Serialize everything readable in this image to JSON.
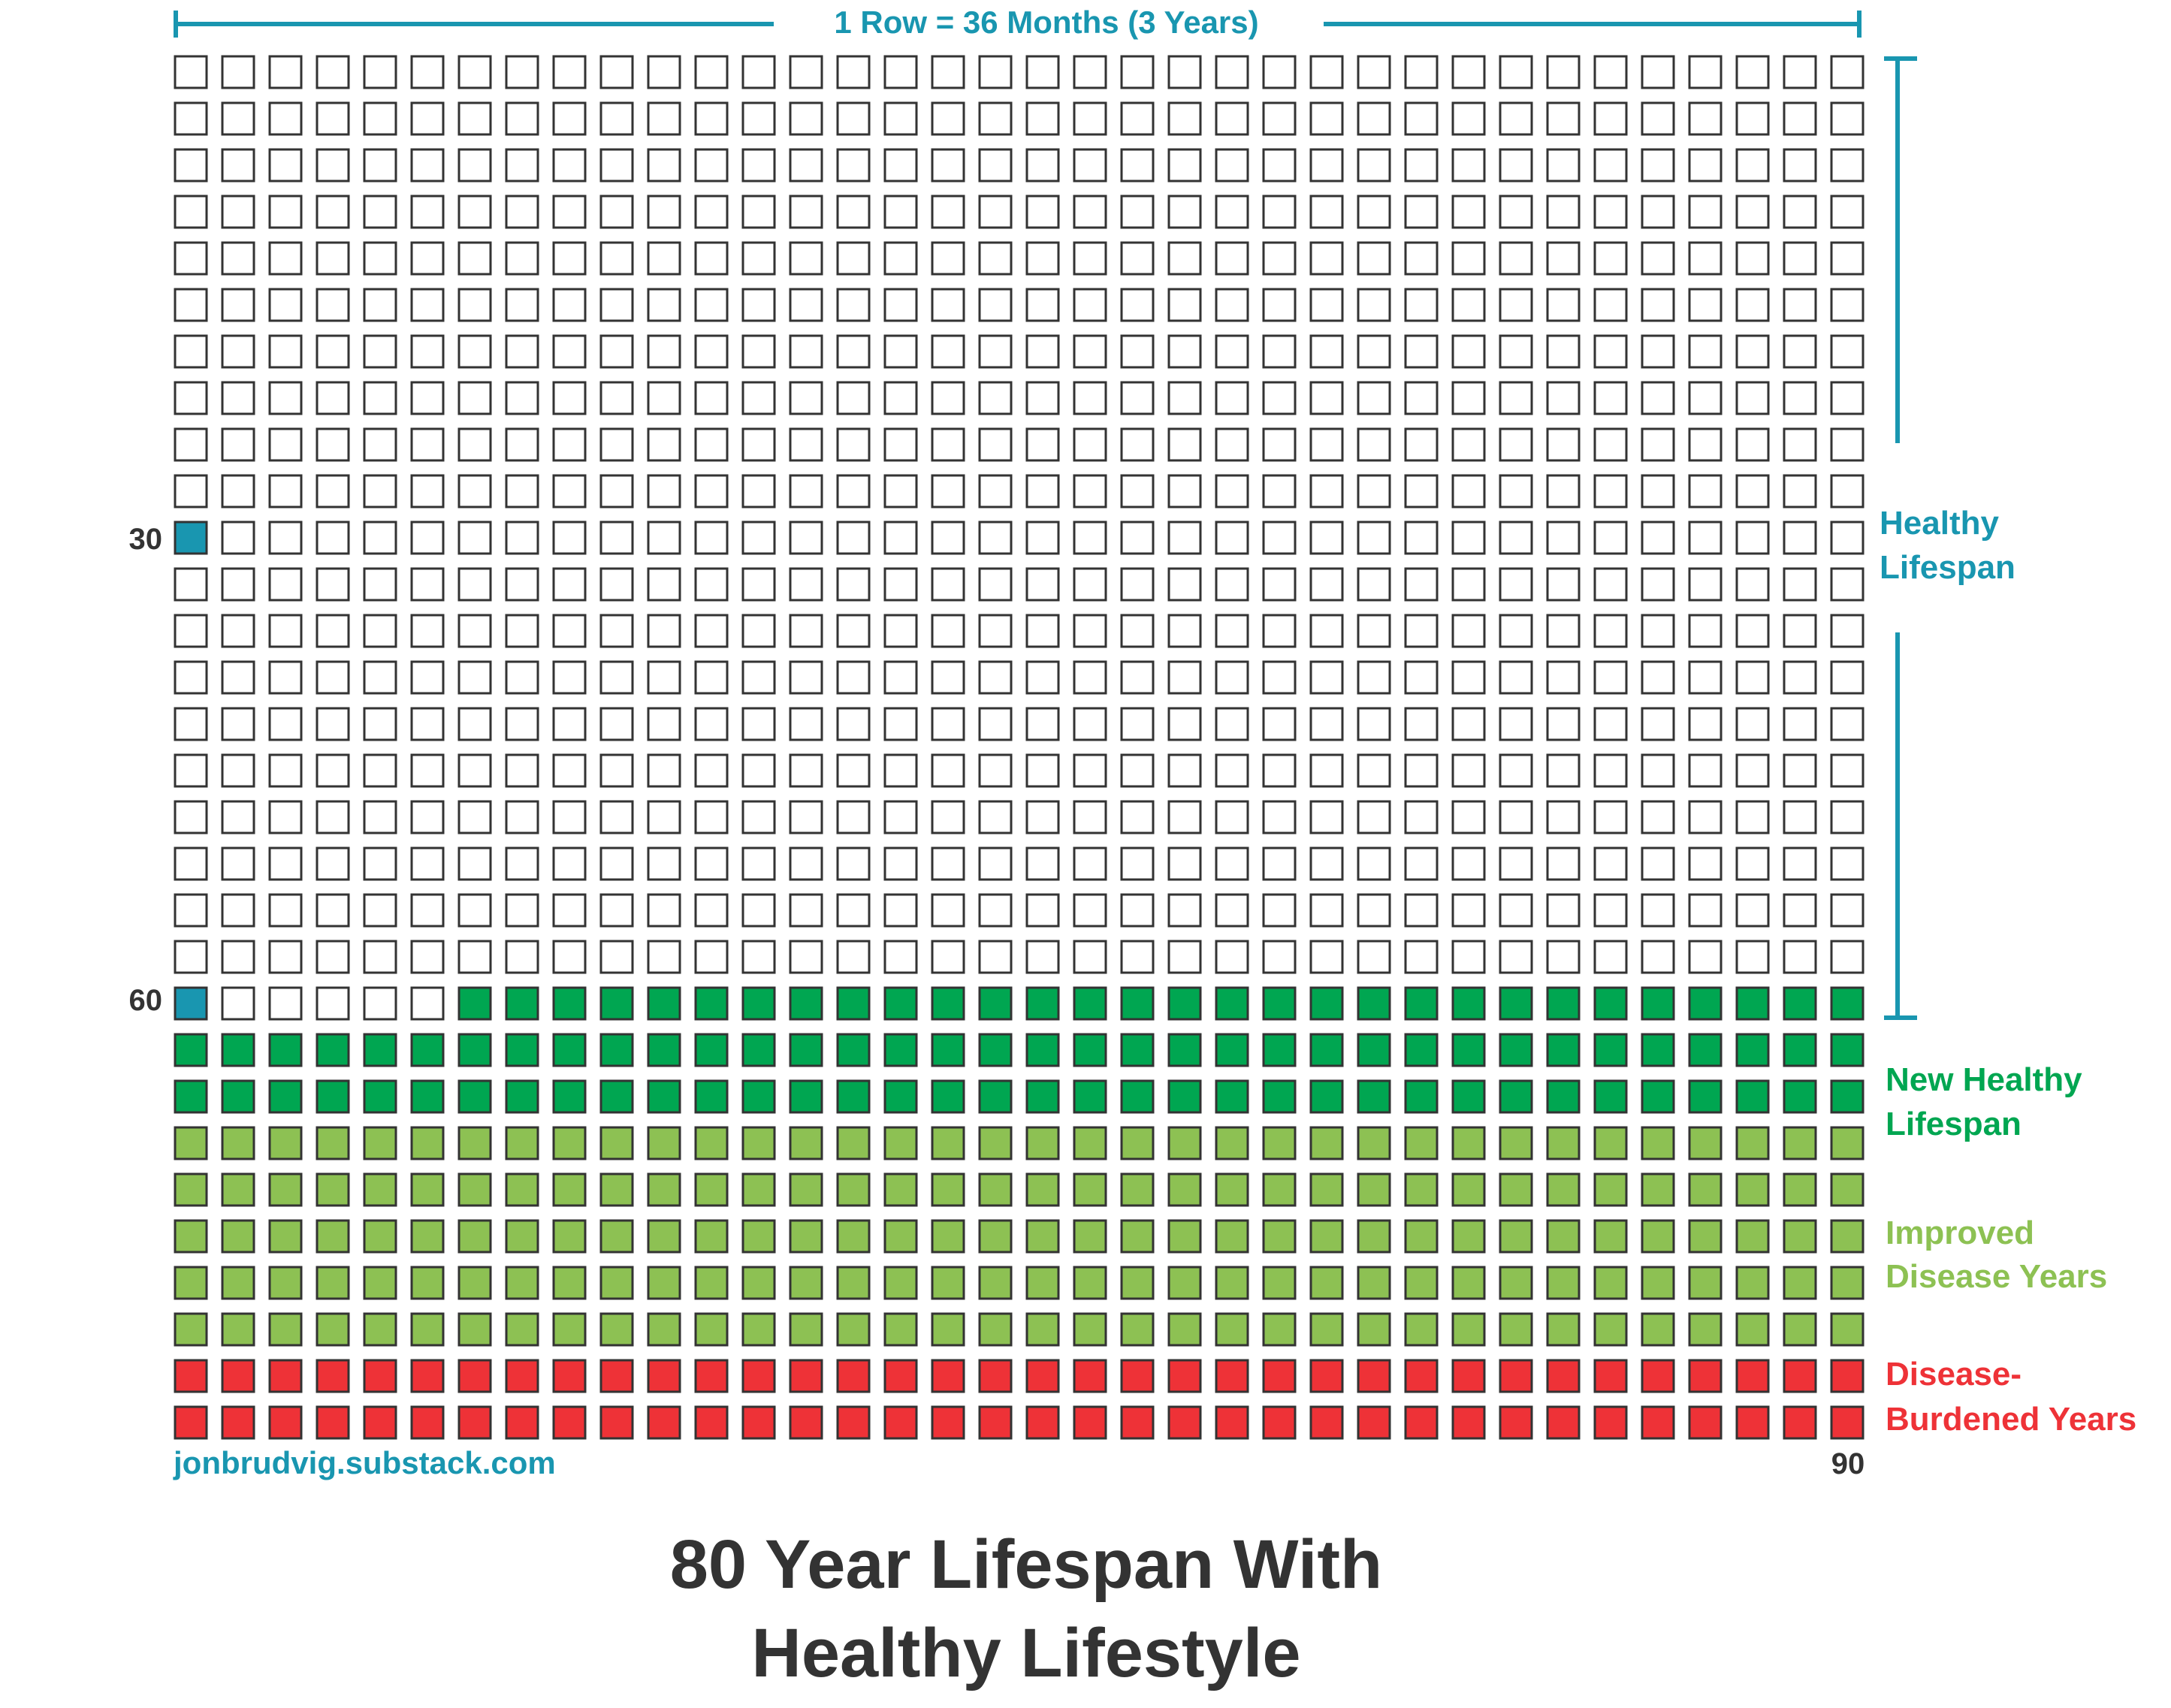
{
  "chart_data": {
    "type": "waffle",
    "title_line1": "80 Year Lifespan With",
    "title_line2": "Healthy Lifestyle",
    "top_label": "1 Row = 36 Months (3 Years)",
    "columns": 36,
    "rows": 30,
    "total_months": 1080,
    "row_markers": [
      {
        "label": "30",
        "row": 10
      },
      {
        "label": "60",
        "row": 20
      }
    ],
    "end_label": "90",
    "source": "jonbrudvig.substack.com",
    "segments": [
      {
        "name": "Healthy Lifespan",
        "months": 726,
        "filled": false,
        "color": "#ffffff",
        "label_color": "#1996b0"
      },
      {
        "name": "New Healthy Lifespan",
        "months": 102,
        "filled": true,
        "color": "#00a651",
        "label_color": "#00a651"
      },
      {
        "name": "Improved Disease Years",
        "months": 180,
        "filled": true,
        "color": "#8dc153",
        "label_color": "#8dc153"
      },
      {
        "name": "Disease-Burdened Years",
        "months": 72,
        "filled": true,
        "color": "#ee3237",
        "label_color": "#ee3237"
      }
    ],
    "marker_color": "#1996b0",
    "labels": {
      "healthy_1": "Healthy",
      "healthy_2": "Lifespan",
      "new_healthy_1": "New Healthy",
      "new_healthy_2": "Lifespan",
      "improved_1": "Improved",
      "improved_2": "Disease Years",
      "burdened_1": "Disease-",
      "burdened_2": "Burdened Years"
    },
    "colors": {
      "accent": "#1996b0",
      "text": "#333333",
      "outline": "#333333"
    }
  }
}
